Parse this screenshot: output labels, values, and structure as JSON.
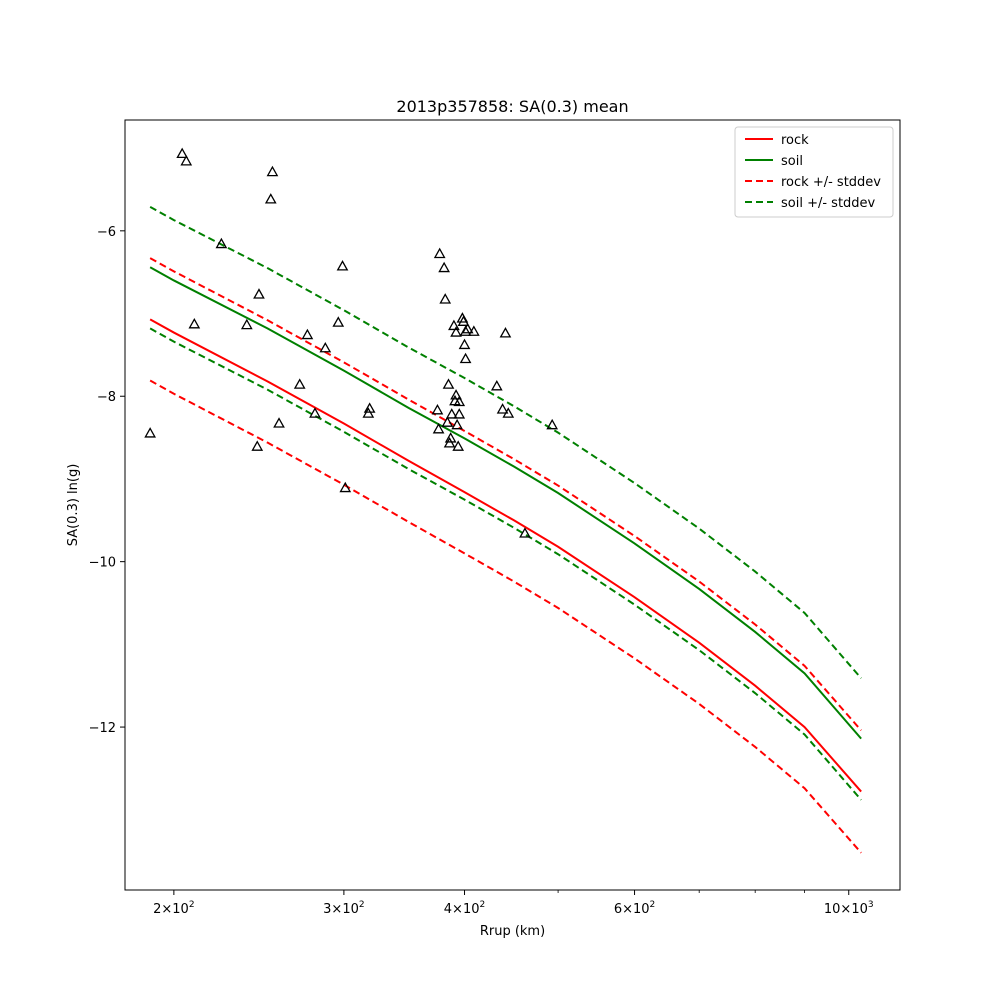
{
  "chart_data": {
    "type": "line",
    "title": "2013p357858: SA(0.3) mean",
    "xlabel": "Rrup (km)",
    "ylabel": "SA(0.3) ln(g)",
    "xscale": "log",
    "xlim": [
      178,
      1130
    ],
    "ylim": [
      -13.97,
      -4.66
    ],
    "grid": false,
    "legend_position": "top-right",
    "x_major_ticks": [
      {
        "value": 200,
        "base": "2",
        "exp": "2"
      },
      {
        "value": 300,
        "base": "3",
        "exp": "2"
      },
      {
        "value": 400,
        "base": "4",
        "exp": "2"
      },
      {
        "value": 600,
        "base": "6",
        "exp": "2"
      },
      {
        "value": 1000,
        "base": "10",
        "exp": "3"
      }
    ],
    "x_minor_ticks": [
      500,
      700,
      800,
      900
    ],
    "y_ticks": [
      {
        "value": -6,
        "label": "−6"
      },
      {
        "value": -8,
        "label": "−8"
      },
      {
        "value": -10,
        "label": "−10"
      },
      {
        "value": -12,
        "label": "−12"
      }
    ],
    "series": [
      {
        "name": "rock",
        "color": "#ff0000",
        "style": "solid",
        "points": [
          [
            189,
            -7.07
          ],
          [
            200,
            -7.23
          ],
          [
            250,
            -7.82
          ],
          [
            300,
            -8.33
          ],
          [
            350,
            -8.78
          ],
          [
            400,
            -9.16
          ],
          [
            450,
            -9.5
          ],
          [
            500,
            -9.82
          ],
          [
            600,
            -10.43
          ],
          [
            700,
            -10.98
          ],
          [
            800,
            -11.5
          ],
          [
            900,
            -12.0
          ],
          [
            1030,
            -12.78
          ]
        ]
      },
      {
        "name": "soil",
        "color": "#008000",
        "style": "solid",
        "points": [
          [
            189,
            -6.44
          ],
          [
            200,
            -6.6
          ],
          [
            250,
            -7.18
          ],
          [
            300,
            -7.69
          ],
          [
            350,
            -8.14
          ],
          [
            400,
            -8.51
          ],
          [
            450,
            -8.85
          ],
          [
            500,
            -9.17
          ],
          [
            600,
            -9.78
          ],
          [
            700,
            -10.33
          ],
          [
            800,
            -10.85
          ],
          [
            900,
            -11.35
          ],
          [
            1030,
            -12.14
          ]
        ]
      },
      {
        "name": "rock +/- stddev",
        "color": "#ff0000",
        "style": "dashed",
        "points": [
          [
            189,
            -6.33
          ],
          [
            200,
            -6.49
          ],
          [
            250,
            -7.08
          ],
          [
            300,
            -7.59
          ],
          [
            350,
            -8.04
          ],
          [
            400,
            -8.42
          ],
          [
            450,
            -8.76
          ],
          [
            500,
            -9.08
          ],
          [
            600,
            -9.69
          ],
          [
            700,
            -10.24
          ],
          [
            800,
            -10.76
          ],
          [
            900,
            -11.26
          ],
          [
            1030,
            -12.04
          ]
        ]
      },
      {
        "color": "#ff0000",
        "style": "dashed",
        "points": [
          [
            189,
            -7.81
          ],
          [
            200,
            -7.97
          ],
          [
            250,
            -8.56
          ],
          [
            300,
            -9.07
          ],
          [
            350,
            -9.52
          ],
          [
            400,
            -9.9
          ],
          [
            450,
            -10.24
          ],
          [
            500,
            -10.56
          ],
          [
            600,
            -11.17
          ],
          [
            700,
            -11.72
          ],
          [
            800,
            -12.24
          ],
          [
            900,
            -12.74
          ],
          [
            1030,
            -13.52
          ]
        ]
      },
      {
        "name": "soil +/- stddev",
        "color": "#008000",
        "style": "dashed",
        "points": [
          [
            189,
            -5.71
          ],
          [
            200,
            -5.87
          ],
          [
            250,
            -6.45
          ],
          [
            300,
            -6.96
          ],
          [
            350,
            -7.41
          ],
          [
            400,
            -7.78
          ],
          [
            450,
            -8.12
          ],
          [
            500,
            -8.44
          ],
          [
            600,
            -9.05
          ],
          [
            700,
            -9.6
          ],
          [
            800,
            -10.12
          ],
          [
            900,
            -10.62
          ],
          [
            1030,
            -11.41
          ]
        ]
      },
      {
        "color": "#008000",
        "style": "dashed",
        "points": [
          [
            189,
            -7.18
          ],
          [
            200,
            -7.34
          ],
          [
            250,
            -7.92
          ],
          [
            300,
            -8.43
          ],
          [
            350,
            -8.88
          ],
          [
            400,
            -9.25
          ],
          [
            450,
            -9.59
          ],
          [
            500,
            -9.91
          ],
          [
            600,
            -10.52
          ],
          [
            700,
            -11.07
          ],
          [
            800,
            -11.59
          ],
          [
            900,
            -12.09
          ],
          [
            1030,
            -12.88
          ]
        ]
      }
    ],
    "observations": {
      "marker": "triangle-open",
      "color": "#000000",
      "points": [
        [
          189,
          -8.45
        ],
        [
          204,
          -5.07
        ],
        [
          206,
          -5.16
        ],
        [
          210,
          -7.13
        ],
        [
          224,
          -6.16
        ],
        [
          238,
          -7.14
        ],
        [
          244,
          -8.61
        ],
        [
          245,
          -6.77
        ],
        [
          252,
          -5.62
        ],
        [
          253,
          -5.29
        ],
        [
          257,
          -8.33
        ],
        [
          270,
          -7.86
        ],
        [
          275,
          -7.26
        ],
        [
          280,
          -8.21
        ],
        [
          287,
          -7.42
        ],
        [
          296,
          -7.11
        ],
        [
          299,
          -6.43
        ],
        [
          301,
          -9.11
        ],
        [
          318,
          -8.21
        ],
        [
          319,
          -8.15
        ],
        [
          375,
          -8.17
        ],
        [
          376,
          -8.4
        ],
        [
          377,
          -6.28
        ],
        [
          381,
          -6.45
        ],
        [
          382,
          -6.83
        ],
        [
          384,
          -8.32
        ],
        [
          385,
          -7.86
        ],
        [
          386,
          -8.57
        ],
        [
          387,
          -8.51
        ],
        [
          388,
          -8.22
        ],
        [
          390,
          -7.15
        ],
        [
          391,
          -8.06
        ],
        [
          392,
          -7.23
        ],
        [
          392,
          -7.99
        ],
        [
          393,
          -8.35
        ],
        [
          394,
          -8.61
        ],
        [
          395,
          -8.07
        ],
        [
          395,
          -8.22
        ],
        [
          398,
          -7.06
        ],
        [
          399,
          -7.1
        ],
        [
          400,
          -7.38
        ],
        [
          401,
          -7.55
        ],
        [
          401,
          -7.22
        ],
        [
          403,
          -7.19
        ],
        [
          409,
          -7.22
        ],
        [
          432,
          -7.88
        ],
        [
          438,
          -8.16
        ],
        [
          441,
          -7.24
        ],
        [
          444,
          -8.21
        ],
        [
          462,
          -9.66
        ],
        [
          493,
          -8.35
        ]
      ]
    }
  }
}
